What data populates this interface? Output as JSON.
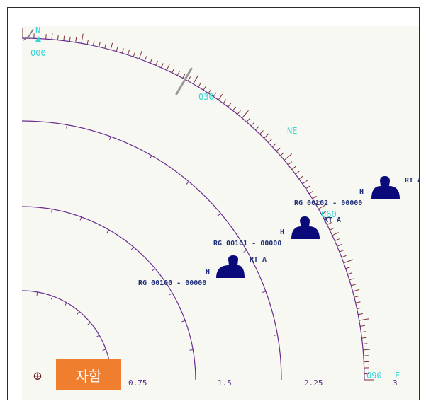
{
  "compass": {
    "north_letter": "N",
    "north_bearing": "000",
    "bearing_030": "030",
    "northeast_letter": "NE",
    "bearing_060": "060",
    "bearing_090": "090",
    "east_letter": "E"
  },
  "range_rings": {
    "labels": [
      "0.75",
      "1.5",
      "2.25",
      "3"
    ]
  },
  "tracks": [
    {
      "id_text": "RG 00100 - 00000",
      "heading_marker": "H",
      "mode": "RT A"
    },
    {
      "id_text": "RG 00101 - 00000",
      "heading_marker": "H",
      "mode": "RT A"
    },
    {
      "id_text": "RG 00102 - 00000",
      "heading_marker": "H",
      "mode": "RT A"
    }
  ],
  "controls": {
    "own_ship_label": "자함",
    "crosshair_symbol": "⊕"
  },
  "colors": {
    "background": "#f8f8f3",
    "ring_line": "#6a2c91",
    "compass_text": "#33d6d6",
    "track_fill": "#0a0a7a",
    "track_text": "#1f2f7a",
    "button": "#f07e2f"
  }
}
